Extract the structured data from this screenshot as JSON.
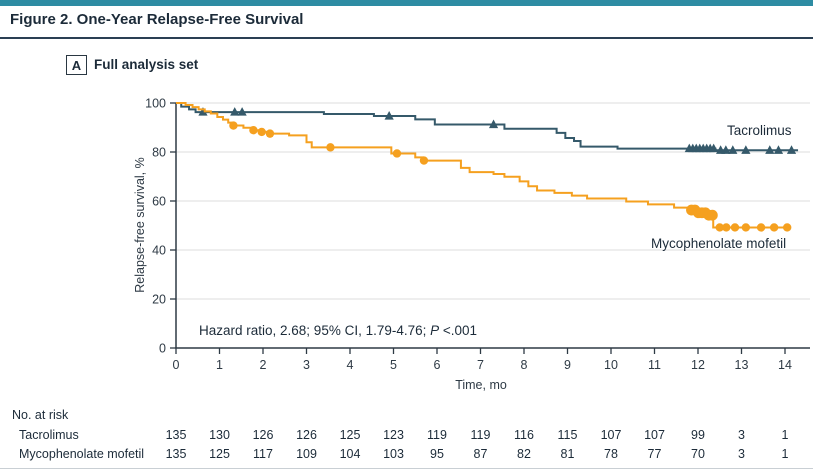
{
  "figure": {
    "title": "Figure 2. One-Year Relapse-Free Survival",
    "panel_label": "A",
    "panel_title": "Full analysis set"
  },
  "colors": {
    "top_bar": "#2E8CA3",
    "rule": "#2A3F53",
    "axis": "#2E3A45",
    "grid": "#DCDCDC",
    "tacrolimus": "#35596A",
    "mmf": "#F5A01F"
  },
  "chart_data": {
    "type": "line",
    "subtype": "kaplan-meier-step",
    "title": "One-Year Relapse-Free Survival (Full analysis set)",
    "xlabel": "Time, mo",
    "ylabel": "Relapse-free survival, %",
    "xlim": [
      0,
      14.6
    ],
    "ylim": [
      0,
      100
    ],
    "xticks": [
      0,
      1,
      2,
      3,
      4,
      5,
      6,
      7,
      8,
      9,
      10,
      11,
      12,
      13,
      14
    ],
    "yticks": [
      0,
      20,
      40,
      60,
      80,
      100
    ],
    "grid": "horizontal",
    "legend_position": "on-curve",
    "annotation": {
      "before_p": "Hazard ratio, 2.68; 95% CI, 1.79-4.76; ",
      "p": "P",
      "after_p": " <.001"
    },
    "series": [
      {
        "id": "tacrolimus",
        "name": "Tacrolimus",
        "color": "#35596A",
        "marker": "triangle",
        "end_x": 14.3,
        "steps": [
          [
            0,
            100
          ],
          [
            0.12,
            98.5
          ],
          [
            0.3,
            97.4
          ],
          [
            0.45,
            96.3
          ],
          [
            3.4,
            95.5
          ],
          [
            4.55,
            94.7
          ],
          [
            5.5,
            93.3
          ],
          [
            5.95,
            91.2
          ],
          [
            7.55,
            89.5
          ],
          [
            8.75,
            87.8
          ],
          [
            8.95,
            85.7
          ],
          [
            9.15,
            84.5
          ],
          [
            9.3,
            82.2
          ],
          [
            10.15,
            81.4
          ],
          [
            12.4,
            80.7
          ]
        ],
        "censors": [
          [
            0.62,
            96.3
          ],
          [
            1.35,
            96.3
          ],
          [
            1.52,
            96.3
          ],
          [
            4.9,
            94.7
          ],
          [
            7.3,
            91.2
          ],
          [
            11.8,
            81.4
          ],
          [
            11.88,
            81.4
          ],
          [
            11.96,
            81.4
          ],
          [
            12.04,
            81.4
          ],
          [
            12.12,
            81.4
          ],
          [
            12.2,
            81.4
          ],
          [
            12.28,
            81.4
          ],
          [
            12.36,
            81.4
          ],
          [
            12.52,
            80.7
          ],
          [
            12.64,
            80.7
          ],
          [
            12.8,
            80.7
          ],
          [
            13.1,
            80.7
          ],
          [
            13.65,
            80.7
          ],
          [
            13.85,
            80.7
          ],
          [
            14.15,
            80.7
          ]
        ]
      },
      {
        "id": "mycophenolate-mofetil",
        "name": "Mycophenolate mofetil",
        "color": "#F5A01F",
        "marker": "circle",
        "end_x": 14.1,
        "steps": [
          [
            0,
            100
          ],
          [
            0.22,
            99.2
          ],
          [
            0.38,
            98.3
          ],
          [
            0.52,
            97.4
          ],
          [
            0.66,
            96.6
          ],
          [
            0.8,
            95.7
          ],
          [
            0.95,
            94.3
          ],
          [
            1.08,
            93.2
          ],
          [
            1.2,
            92.0
          ],
          [
            1.32,
            90.8
          ],
          [
            1.55,
            89.9
          ],
          [
            1.78,
            88.9
          ],
          [
            1.97,
            88.2
          ],
          [
            2.16,
            87.5
          ],
          [
            2.6,
            86.8
          ],
          [
            3.0,
            84.0
          ],
          [
            3.12,
            81.9
          ],
          [
            4.95,
            79.4
          ],
          [
            5.5,
            77.8
          ],
          [
            5.68,
            76.5
          ],
          [
            6.55,
            73.5
          ],
          [
            6.75,
            71.8
          ],
          [
            7.3,
            71.0
          ],
          [
            7.55,
            69.9
          ],
          [
            7.9,
            68.0
          ],
          [
            8.1,
            66.0
          ],
          [
            8.3,
            64.3
          ],
          [
            8.7,
            63.3
          ],
          [
            9.1,
            62.2
          ],
          [
            9.45,
            61.0
          ],
          [
            10.35,
            59.8
          ],
          [
            10.85,
            58.6
          ],
          [
            11.45,
            57.3
          ],
          [
            11.8,
            56.3
          ],
          [
            12.05,
            55.2
          ],
          [
            12.2,
            54.2
          ],
          [
            12.35,
            49.2
          ]
        ],
        "censors": [
          [
            1.32,
            90.8
          ],
          [
            1.78,
            88.9
          ],
          [
            1.97,
            88.2
          ],
          [
            2.16,
            87.5
          ],
          [
            3.55,
            81.9
          ],
          [
            5.08,
            79.4
          ],
          [
            5.7,
            76.5
          ],
          [
            11.85,
            56.3,
            1
          ],
          [
            11.93,
            56.3,
            1
          ],
          [
            12.01,
            55.2,
            1
          ],
          [
            12.09,
            55.2,
            1
          ],
          [
            12.17,
            55.2,
            1
          ],
          [
            12.25,
            54.2,
            1
          ],
          [
            12.33,
            54.2,
            1
          ],
          [
            12.5,
            49.2
          ],
          [
            12.65,
            49.2
          ],
          [
            12.85,
            49.2
          ],
          [
            13.1,
            49.2
          ],
          [
            13.45,
            49.2
          ],
          [
            13.75,
            49.2
          ],
          [
            14.05,
            49.2
          ]
        ]
      }
    ],
    "at_risk": {
      "heading": "No. at risk",
      "rows": [
        {
          "label": "Tacrolimus",
          "values": [
            135,
            130,
            126,
            126,
            125,
            123,
            119,
            119,
            116,
            115,
            107,
            107,
            99,
            3,
            1
          ]
        },
        {
          "label": "Mycophenolate mofetil",
          "values": [
            135,
            125,
            117,
            109,
            104,
            103,
            95,
            87,
            82,
            81,
            78,
            77,
            70,
            3,
            1
          ]
        }
      ]
    }
  }
}
